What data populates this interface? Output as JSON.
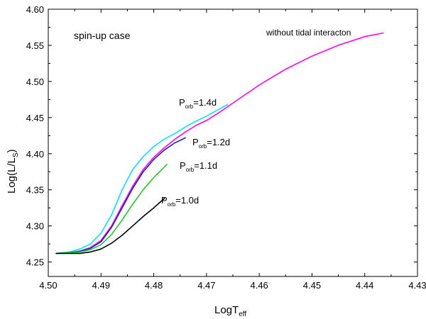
{
  "chart_data": {
    "type": "line",
    "title": "",
    "xlabel": {
      "main": "LogT",
      "sub": "eff"
    },
    "ylabel": {
      "main": "Log(L/L",
      "sub": "S",
      "close": ")"
    },
    "xlim": [
      4.5,
      4.43
    ],
    "ylim": [
      4.23,
      4.6
    ],
    "x_ticks": [
      "4.50",
      "4.49",
      "4.48",
      "4.47",
      "4.46",
      "4.45",
      "4.44",
      "4.43"
    ],
    "y_ticks": [
      "4.25",
      "4.30",
      "4.35",
      "4.40",
      "4.45",
      "4.50",
      "4.55",
      "4.60"
    ],
    "x_tick_values": [
      4.5,
      4.49,
      4.48,
      4.47,
      4.46,
      4.45,
      4.44,
      4.43
    ],
    "y_tick_values": [
      4.25,
      4.3,
      4.35,
      4.4,
      4.45,
      4.5,
      4.55,
      4.6
    ],
    "annotations": [
      {
        "id": "case",
        "text": "spin-up case"
      },
      {
        "id": "no_tidal",
        "text": "without tidal interacton"
      },
      {
        "id": "p14",
        "prefix": "P",
        "sub": "orb",
        "suffix": "=1.4d"
      },
      {
        "id": "p12",
        "prefix": "P",
        "sub": "orb",
        "suffix": "=1.2d"
      },
      {
        "id": "p11",
        "prefix": "P",
        "sub": "orb",
        "suffix": "=1.1d"
      },
      {
        "id": "p10",
        "prefix": "P",
        "sub": "orb",
        "suffix": "=1.0d"
      }
    ],
    "series": [
      {
        "name": "without tidal interaction",
        "color": "#ff00ff",
        "x": [
          4.4985,
          4.496,
          4.494,
          4.492,
          4.49,
          4.488,
          4.486,
          4.484,
          4.482,
          4.48,
          4.478,
          4.476,
          4.474,
          4.472,
          4.47,
          4.468,
          4.466,
          4.464,
          4.46,
          4.455,
          4.45,
          4.445,
          4.44,
          4.4365
        ],
        "y": [
          4.262,
          4.263,
          4.265,
          4.27,
          4.28,
          4.3,
          4.328,
          4.355,
          4.378,
          4.395,
          4.408,
          4.42,
          4.43,
          4.439,
          4.446,
          4.455,
          4.465,
          4.475,
          4.495,
          4.517,
          4.535,
          4.55,
          4.562,
          4.567
        ]
      },
      {
        "name": "Porb=1.4d",
        "color": "#00e5ff",
        "x": [
          4.4985,
          4.496,
          4.494,
          4.492,
          4.49,
          4.488,
          4.486,
          4.484,
          4.482,
          4.48,
          4.478,
          4.476,
          4.474,
          4.472,
          4.47,
          4.468,
          4.466
        ],
        "y": [
          4.262,
          4.264,
          4.268,
          4.275,
          4.29,
          4.315,
          4.35,
          4.378,
          4.396,
          4.41,
          4.42,
          4.428,
          4.437,
          4.445,
          4.452,
          4.46,
          4.468
        ]
      },
      {
        "name": "Porb=1.2d",
        "color": "#2020c0",
        "x": [
          4.4985,
          4.496,
          4.494,
          4.492,
          4.49,
          4.488,
          4.486,
          4.484,
          4.482,
          4.48,
          4.478,
          4.476,
          4.474
        ],
        "y": [
          4.262,
          4.263,
          4.265,
          4.269,
          4.278,
          4.298,
          4.325,
          4.352,
          4.375,
          4.392,
          4.405,
          4.415,
          4.422
        ]
      },
      {
        "name": "Porb=1.1d",
        "color": "#22cc22",
        "x": [
          4.4985,
          4.496,
          4.494,
          4.492,
          4.49,
          4.488,
          4.486,
          4.484,
          4.482,
          4.48,
          4.4775
        ],
        "y": [
          4.262,
          4.263,
          4.264,
          4.267,
          4.274,
          4.288,
          4.308,
          4.33,
          4.35,
          4.367,
          4.385
        ]
      },
      {
        "name": "Porb=1.0d",
        "color": "#000000",
        "x": [
          4.4985,
          4.496,
          4.494,
          4.492,
          4.49,
          4.488,
          4.486,
          4.484,
          4.482,
          4.48,
          4.478
        ],
        "y": [
          4.262,
          4.262,
          4.262,
          4.264,
          4.268,
          4.276,
          4.287,
          4.3,
          4.313,
          4.325,
          4.338
        ]
      }
    ]
  }
}
